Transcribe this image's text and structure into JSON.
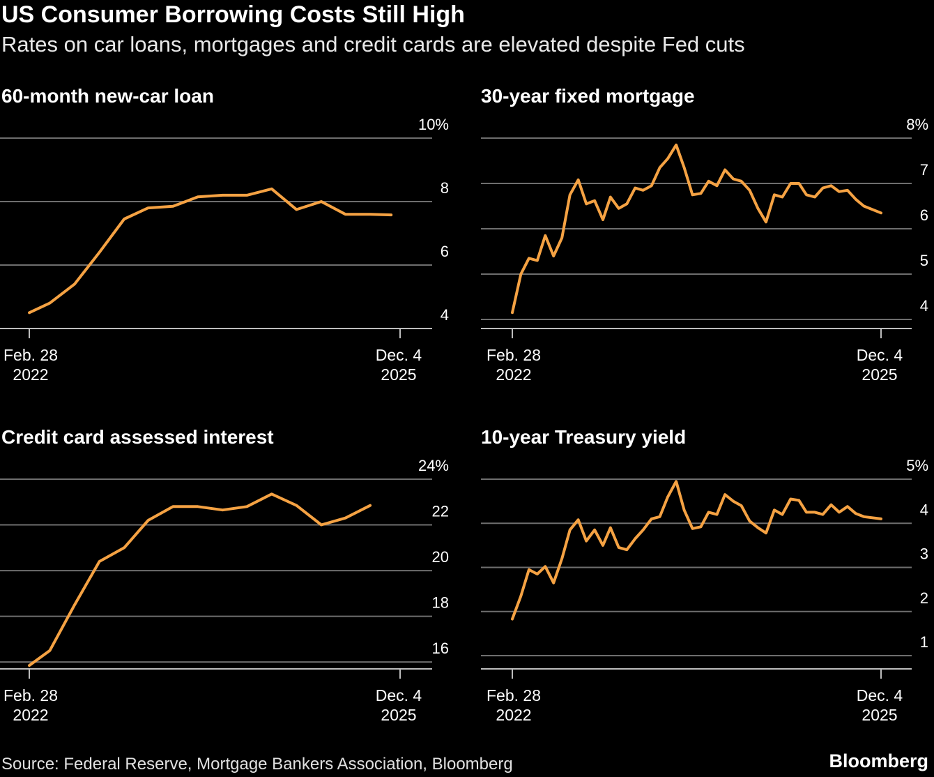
{
  "header": {
    "title": "US Consumer Borrowing Costs Still High",
    "subtitle": "Rates on car loans, mortgages and credit cards are elevated despite Fed cuts"
  },
  "colors": {
    "line": "#f5a243",
    "grid": "#6e6e6e",
    "axis": "#bdbdbd",
    "text": "#ffffff",
    "background": "#000000"
  },
  "chart_data": [
    {
      "type": "line",
      "title": "60-month new-car loan",
      "x_start_label": [
        "Feb. 28",
        "2022"
      ],
      "x_end_label": [
        "Dec. 4",
        "2025"
      ],
      "ylim": [
        4,
        10
      ],
      "y_ticks": [
        "4",
        "6",
        "8",
        "10%"
      ],
      "grid": true,
      "series": [
        {
          "x": [
            "2022-02-28",
            "2022-05-15",
            "2022-08-15",
            "2022-11-15",
            "2023-02-15",
            "2023-05-15",
            "2023-08-15",
            "2023-11-15",
            "2024-02-15",
            "2024-05-15",
            "2024-08-15",
            "2024-11-15",
            "2025-02-15",
            "2025-05-15",
            "2025-08-15",
            "2025-11-01"
          ],
          "values": [
            4.5,
            4.8,
            5.4,
            6.4,
            7.45,
            7.8,
            7.85,
            8.15,
            8.2,
            8.2,
            8.4,
            7.75,
            8.0,
            7.6,
            7.6,
            7.58
          ]
        }
      ]
    },
    {
      "type": "line",
      "title": "30-year fixed mortgage",
      "x_start_label": [
        "Feb. 28",
        "2022"
      ],
      "x_end_label": [
        "Dec. 4",
        "2025"
      ],
      "ylim": [
        3.8,
        8
      ],
      "y_ticks": [
        "4",
        "5",
        "6",
        "7",
        "8%"
      ],
      "grid": true,
      "series": [
        {
          "x": [
            "2022-02-28",
            "2022-04-01",
            "2022-05-01",
            "2022-06-01",
            "2022-07-01",
            "2022-08-01",
            "2022-09-01",
            "2022-10-01",
            "2022-11-01",
            "2022-12-01",
            "2023-01-01",
            "2023-02-01",
            "2023-03-01",
            "2023-04-01",
            "2023-05-01",
            "2023-06-01",
            "2023-07-01",
            "2023-08-01",
            "2023-09-01",
            "2023-10-01",
            "2023-11-01",
            "2023-12-01",
            "2024-01-01",
            "2024-02-01",
            "2024-03-01",
            "2024-04-01",
            "2024-05-01",
            "2024-06-01",
            "2024-07-01",
            "2024-08-01",
            "2024-09-01",
            "2024-10-01",
            "2024-11-01",
            "2024-12-01",
            "2025-01-01",
            "2025-02-01",
            "2025-03-01",
            "2025-04-01",
            "2025-05-01",
            "2025-06-01",
            "2025-07-01",
            "2025-08-01",
            "2025-09-01",
            "2025-10-01",
            "2025-12-04"
          ],
          "values": [
            4.15,
            5.0,
            5.35,
            5.3,
            5.85,
            5.4,
            5.8,
            6.75,
            7.08,
            6.55,
            6.62,
            6.2,
            6.7,
            6.45,
            6.55,
            6.9,
            6.85,
            6.95,
            7.35,
            7.55,
            7.85,
            7.35,
            6.75,
            6.78,
            7.05,
            6.95,
            7.3,
            7.1,
            7.05,
            6.85,
            6.45,
            6.15,
            6.75,
            6.7,
            7.0,
            7.0,
            6.75,
            6.7,
            6.9,
            6.95,
            6.82,
            6.85,
            6.65,
            6.5,
            6.35
          ]
        }
      ]
    },
    {
      "type": "line",
      "title": "Credit card assessed interest",
      "x_start_label": [
        "Feb. 28",
        "2022"
      ],
      "x_end_label": [
        "Dec. 4",
        "2025"
      ],
      "ylim": [
        15.7,
        24
      ],
      "y_ticks": [
        "16",
        "18",
        "20",
        "22",
        "24%"
      ],
      "grid": true,
      "series": [
        {
          "x": [
            "2022-02-28",
            "2022-05-15",
            "2022-08-15",
            "2022-11-15",
            "2023-02-15",
            "2023-05-15",
            "2023-08-15",
            "2023-11-15",
            "2024-02-15",
            "2024-05-15",
            "2024-08-15",
            "2024-11-15",
            "2025-02-15",
            "2025-05-15",
            "2025-08-15"
          ],
          "values": [
            15.85,
            16.5,
            18.5,
            20.4,
            21.0,
            22.2,
            22.8,
            22.8,
            22.65,
            22.8,
            23.35,
            22.85,
            22.0,
            22.3,
            22.85
          ]
        }
      ]
    },
    {
      "type": "line",
      "title": "10-year Treasury yield",
      "x_start_label": [
        "Feb. 28",
        "2022"
      ],
      "x_end_label": [
        "Dec. 4",
        "2025"
      ],
      "ylim": [
        0.7,
        5
      ],
      "y_ticks": [
        "1",
        "2",
        "3",
        "4",
        "5%"
      ],
      "grid": true,
      "series": [
        {
          "x": [
            "2022-02-28",
            "2022-04-01",
            "2022-05-01",
            "2022-06-01",
            "2022-07-01",
            "2022-08-01",
            "2022-09-01",
            "2022-10-01",
            "2022-11-01",
            "2022-12-01",
            "2023-01-01",
            "2023-02-01",
            "2023-03-01",
            "2023-04-01",
            "2023-05-01",
            "2023-06-01",
            "2023-07-01",
            "2023-08-01",
            "2023-09-01",
            "2023-10-01",
            "2023-11-01",
            "2023-12-01",
            "2024-01-01",
            "2024-02-01",
            "2024-03-01",
            "2024-04-01",
            "2024-05-01",
            "2024-06-01",
            "2024-07-01",
            "2024-08-01",
            "2024-09-01",
            "2024-10-01",
            "2024-11-01",
            "2024-12-01",
            "2025-01-01",
            "2025-02-01",
            "2025-03-01",
            "2025-04-01",
            "2025-05-01",
            "2025-06-01",
            "2025-07-01",
            "2025-08-01",
            "2025-09-01",
            "2025-10-01",
            "2025-12-04"
          ],
          "values": [
            1.83,
            2.35,
            2.95,
            2.85,
            3.02,
            2.65,
            3.2,
            3.85,
            4.08,
            3.6,
            3.85,
            3.5,
            3.9,
            3.45,
            3.4,
            3.65,
            3.85,
            4.1,
            4.15,
            4.6,
            4.95,
            4.3,
            3.88,
            3.92,
            4.25,
            4.2,
            4.65,
            4.5,
            4.4,
            4.05,
            3.9,
            3.78,
            4.3,
            4.2,
            4.55,
            4.52,
            4.25,
            4.25,
            4.2,
            4.42,
            4.25,
            4.38,
            4.22,
            4.15,
            4.1
          ]
        }
      ]
    }
  ],
  "footer": {
    "source": "Source: Federal Reserve, Mortgage Bankers Association, Bloomberg",
    "brand": "Bloomberg"
  }
}
